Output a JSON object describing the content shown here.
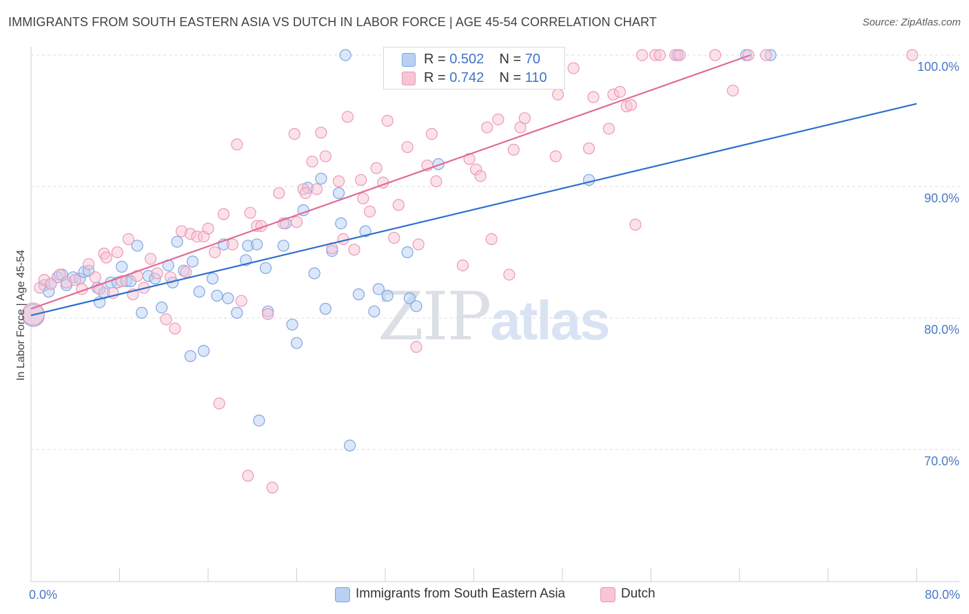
{
  "header": {
    "title": "IMMIGRANTS FROM SOUTH EASTERN ASIA VS DUTCH IN LABOR FORCE | AGE 45-54 CORRELATION CHART",
    "source": "Source: ZipAtlas.com"
  },
  "watermark": {
    "part1": "ZIP",
    "part2": "atlas"
  },
  "legend": {
    "blue": {
      "r_label": "R = ",
      "r_value": "0.502",
      "n_label": "N = ",
      "n_value": "70"
    },
    "pink": {
      "r_label": "R = ",
      "r_value": "0.742",
      "n_label": "N = ",
      "n_value": "110"
    }
  },
  "colors": {
    "blue_fill": "#b9d0f3",
    "blue_stroke": "#7da6e3",
    "blue_line": "#2e6fcf",
    "pink_fill": "#f7c5d5",
    "pink_stroke": "#ec98b4",
    "pink_line": "#e06a93",
    "grid": "#dcdce2",
    "tick_text": "#4a78c6"
  },
  "chart_data": {
    "type": "scatter",
    "title": "IMMIGRANTS FROM SOUTH EASTERN ASIA VS DUTCH IN LABOR FORCE | AGE 45-54 CORRELATION CHART",
    "xlabel": "",
    "ylabel": "In Labor Force | Age 45-54",
    "xlim": [
      0,
      80
    ],
    "ylim": [
      60,
      100
    ],
    "x_tick_labels": [
      "0.0%",
      "80.0%"
    ],
    "y_ticks": [
      70,
      80,
      90,
      100
    ],
    "y_tick_labels": [
      "70.0%",
      "80.0%",
      "90.0%",
      "100.0%"
    ],
    "grid": true,
    "legend_position": "top-center",
    "series": [
      {
        "name": "Immigrants from South Eastern Asia",
        "color": "#b9d0f3",
        "trend": [
          [
            0,
            80.2
          ],
          [
            80,
            96.3
          ]
        ],
        "points": [
          [
            0.2,
            80.2
          ],
          [
            1.2,
            82.5
          ],
          [
            1.6,
            82.0
          ],
          [
            1.8,
            82.6
          ],
          [
            2.4,
            83.1
          ],
          [
            2.8,
            83.3
          ],
          [
            3.2,
            82.5
          ],
          [
            3.8,
            83.1
          ],
          [
            4.4,
            83.0
          ],
          [
            4.8,
            83.5
          ],
          [
            5.2,
            83.6
          ],
          [
            6.0,
            82.3
          ],
          [
            6.2,
            81.2
          ],
          [
            6.6,
            81.9
          ],
          [
            7.2,
            82.7
          ],
          [
            7.8,
            82.7
          ],
          [
            8.2,
            83.9
          ],
          [
            8.6,
            82.8
          ],
          [
            9.0,
            82.8
          ],
          [
            9.6,
            85.5
          ],
          [
            10.0,
            80.4
          ],
          [
            10.6,
            83.2
          ],
          [
            11.2,
            83.0
          ],
          [
            11.8,
            80.8
          ],
          [
            12.4,
            84.0
          ],
          [
            12.8,
            82.7
          ],
          [
            13.2,
            85.8
          ],
          [
            13.8,
            83.6
          ],
          [
            14.6,
            84.3
          ],
          [
            14.4,
            77.1
          ],
          [
            15.2,
            82.0
          ],
          [
            15.6,
            77.5
          ],
          [
            16.4,
            83.0
          ],
          [
            16.8,
            81.7
          ],
          [
            17.4,
            85.6
          ],
          [
            17.8,
            81.5
          ],
          [
            18.6,
            80.4
          ],
          [
            19.4,
            84.4
          ],
          [
            19.6,
            85.5
          ],
          [
            20.4,
            85.6
          ],
          [
            20.6,
            72.2
          ],
          [
            21.2,
            83.8
          ],
          [
            21.4,
            80.5
          ],
          [
            22.8,
            85.5
          ],
          [
            23.0,
            87.2
          ],
          [
            23.6,
            79.5
          ],
          [
            24.0,
            78.1
          ],
          [
            24.6,
            88.2
          ],
          [
            25.0,
            89.9
          ],
          [
            25.6,
            83.4
          ],
          [
            26.2,
            90.6
          ],
          [
            26.6,
            80.7
          ],
          [
            27.2,
            85.1
          ],
          [
            27.8,
            89.5
          ],
          [
            28.0,
            87.2
          ],
          [
            28.4,
            100
          ],
          [
            28.8,
            70.3
          ],
          [
            29.6,
            81.8
          ],
          [
            30.2,
            86.6
          ],
          [
            31.0,
            80.5
          ],
          [
            31.4,
            82.2
          ],
          [
            32.2,
            81.7
          ],
          [
            34.0,
            85.0
          ],
          [
            34.2,
            81.5
          ],
          [
            34.8,
            80.9
          ],
          [
            36.8,
            91.7
          ],
          [
            50.4,
            90.5
          ],
          [
            58.4,
            100
          ],
          [
            64.6,
            100
          ],
          [
            66.8,
            100
          ]
        ]
      },
      {
        "name": "Dutch",
        "color": "#f7c5d5",
        "trend": [
          [
            0,
            80.7
          ],
          [
            65,
            100
          ]
        ],
        "points": [
          [
            0.2,
            80.3
          ],
          [
            0.8,
            82.3
          ],
          [
            1.2,
            82.9
          ],
          [
            1.8,
            82.6
          ],
          [
            2.6,
            83.3
          ],
          [
            3.2,
            82.7
          ],
          [
            4.0,
            82.9
          ],
          [
            4.6,
            82.2
          ],
          [
            5.2,
            84.1
          ],
          [
            5.8,
            83.1
          ],
          [
            6.2,
            82.2
          ],
          [
            6.6,
            84.9
          ],
          [
            6.8,
            84.6
          ],
          [
            7.4,
            81.9
          ],
          [
            7.8,
            85.0
          ],
          [
            8.2,
            82.8
          ],
          [
            8.8,
            86.0
          ],
          [
            9.2,
            81.8
          ],
          [
            9.6,
            83.2
          ],
          [
            10.2,
            82.3
          ],
          [
            10.8,
            84.5
          ],
          [
            11.4,
            83.4
          ],
          [
            12.2,
            79.9
          ],
          [
            12.6,
            83.1
          ],
          [
            13.0,
            79.2
          ],
          [
            13.6,
            86.6
          ],
          [
            14.0,
            83.5
          ],
          [
            14.4,
            86.4
          ],
          [
            15.0,
            86.2
          ],
          [
            15.6,
            86.2
          ],
          [
            16.0,
            86.8
          ],
          [
            16.6,
            85.0
          ],
          [
            17.0,
            73.5
          ],
          [
            17.4,
            87.9
          ],
          [
            18.2,
            85.6
          ],
          [
            18.6,
            93.2
          ],
          [
            19.0,
            81.3
          ],
          [
            19.6,
            68.0
          ],
          [
            19.8,
            88.0
          ],
          [
            20.4,
            87.0
          ],
          [
            20.8,
            87.0
          ],
          [
            21.4,
            80.3
          ],
          [
            21.8,
            67.1
          ],
          [
            22.4,
            89.5
          ],
          [
            22.8,
            87.2
          ],
          [
            23.8,
            94.0
          ],
          [
            24.0,
            87.3
          ],
          [
            24.6,
            89.8
          ],
          [
            24.8,
            89.5
          ],
          [
            25.4,
            91.9
          ],
          [
            25.8,
            89.8
          ],
          [
            26.2,
            94.1
          ],
          [
            26.6,
            92.3
          ],
          [
            27.2,
            85.3
          ],
          [
            27.8,
            90.4
          ],
          [
            28.2,
            86.0
          ],
          [
            28.6,
            95.3
          ],
          [
            29.2,
            85.2
          ],
          [
            29.8,
            90.5
          ],
          [
            30.0,
            89.1
          ],
          [
            30.6,
            88.1
          ],
          [
            31.2,
            91.4
          ],
          [
            31.8,
            90.3
          ],
          [
            32.2,
            95.0
          ],
          [
            32.8,
            86.1
          ],
          [
            33.2,
            88.6
          ],
          [
            34.0,
            93.0
          ],
          [
            34.8,
            77.8
          ],
          [
            35.0,
            85.6
          ],
          [
            35.8,
            91.6
          ],
          [
            36.2,
            94.0
          ],
          [
            36.6,
            90.4
          ],
          [
            37.0,
            100
          ],
          [
            38.0,
            100
          ],
          [
            39.0,
            84.0
          ],
          [
            39.6,
            92.1
          ],
          [
            40.2,
            91.3
          ],
          [
            40.6,
            90.8
          ],
          [
            41.2,
            94.5
          ],
          [
            41.6,
            86.0
          ],
          [
            42.2,
            95.1
          ],
          [
            43.2,
            83.3
          ],
          [
            43.6,
            92.8
          ],
          [
            44.2,
            94.5
          ],
          [
            44.6,
            95.2
          ],
          [
            45.6,
            99.7
          ],
          [
            46.4,
            99.3
          ],
          [
            47.4,
            92.3
          ],
          [
            47.6,
            97.0
          ],
          [
            49.0,
            99.0
          ],
          [
            50.4,
            92.9
          ],
          [
            50.8,
            96.8
          ],
          [
            52.2,
            94.4
          ],
          [
            52.6,
            97.0
          ],
          [
            53.2,
            97.2
          ],
          [
            53.8,
            96.1
          ],
          [
            54.2,
            96.2
          ],
          [
            54.6,
            87.1
          ],
          [
            55.2,
            100
          ],
          [
            56.4,
            100
          ],
          [
            56.8,
            100
          ],
          [
            58.2,
            100
          ],
          [
            58.6,
            100
          ],
          [
            61.8,
            100
          ],
          [
            63.4,
            97.3
          ],
          [
            64.8,
            100
          ],
          [
            66.4,
            100
          ],
          [
            79.6,
            100
          ]
        ]
      }
    ]
  }
}
